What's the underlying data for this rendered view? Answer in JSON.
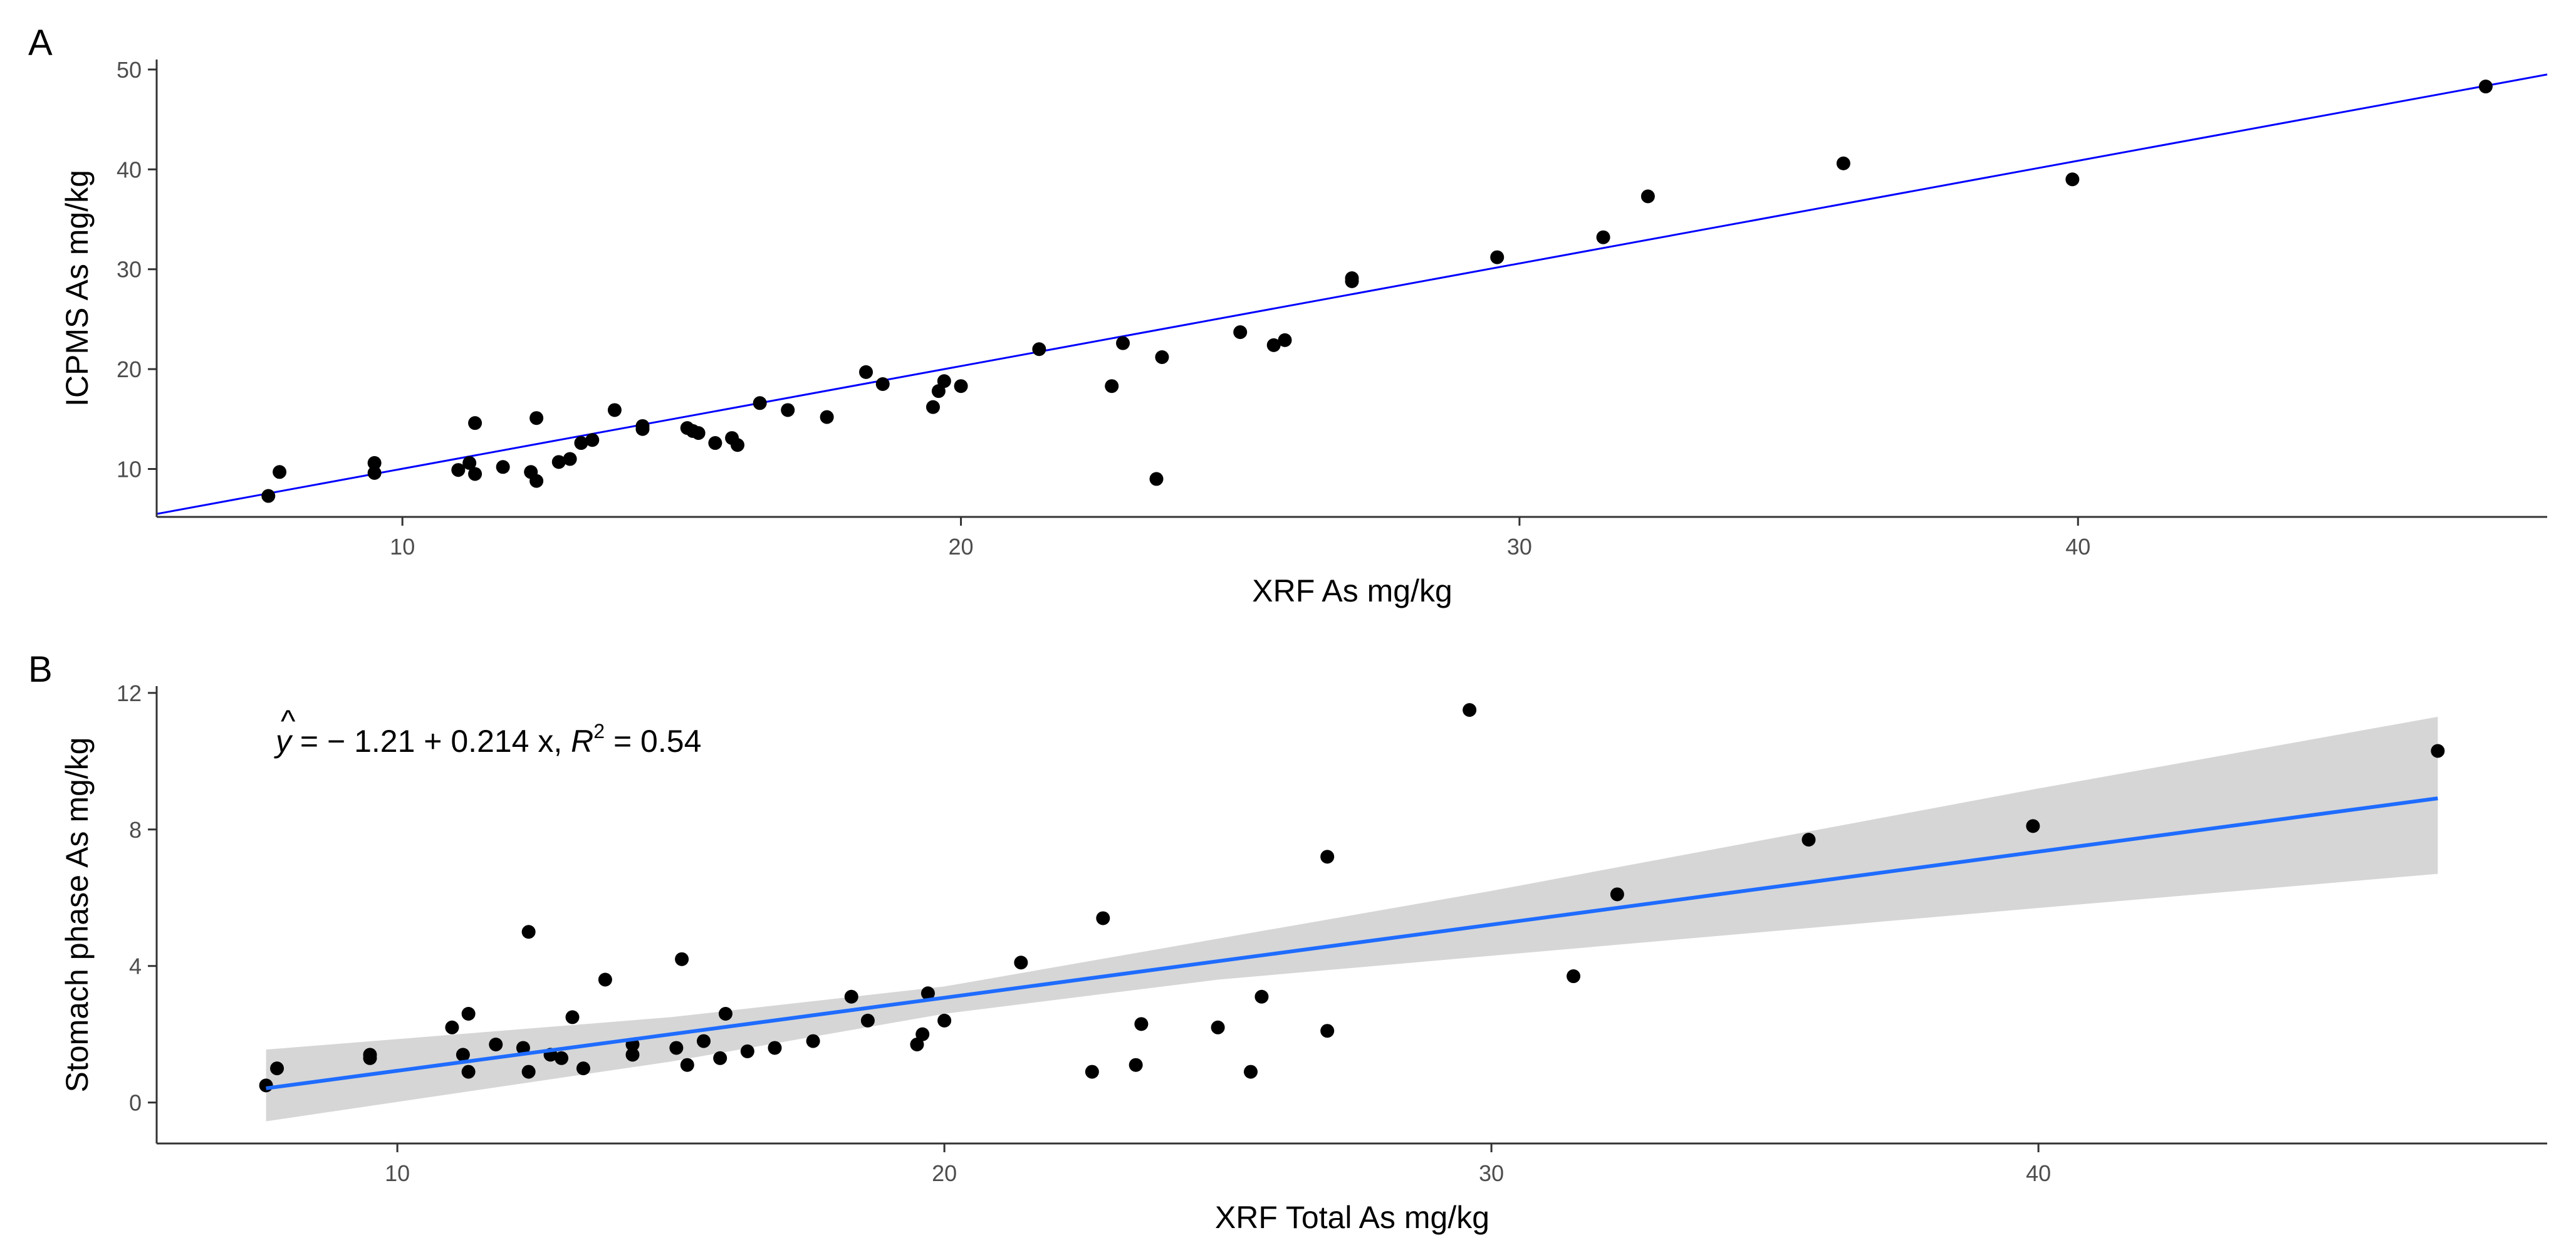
{
  "chart_data": [
    {
      "type": "scatter",
      "panel_tag": "A",
      "xlabel": "XRF As mg/kg",
      "ylabel": "ICPMS As mg/kg",
      "xlim": [
        5.6,
        48.4
      ],
      "ylim": [
        5.2,
        51
      ],
      "xticks": [
        10,
        20,
        30,
        40
      ],
      "yticks": [
        10,
        20,
        30,
        40,
        50
      ],
      "point_color": "#000000",
      "line_color": "#0000ff",
      "fit_line": {
        "x1": 5.6,
        "y1": 5.5,
        "x2": 48.4,
        "y2": 49.5
      },
      "points": [
        [
          7.6,
          7.3
        ],
        [
          7.8,
          9.7
        ],
        [
          9.5,
          10.6
        ],
        [
          9.5,
          9.6
        ],
        [
          11.0,
          9.9
        ],
        [
          11.2,
          10.6
        ],
        [
          11.3,
          14.6
        ],
        [
          11.3,
          9.5
        ],
        [
          11.8,
          10.2
        ],
        [
          12.3,
          9.7
        ],
        [
          12.4,
          8.8
        ],
        [
          12.4,
          15.1
        ],
        [
          12.8,
          10.7
        ],
        [
          13.0,
          11.0
        ],
        [
          13.2,
          12.6
        ],
        [
          13.4,
          12.9
        ],
        [
          13.8,
          15.9
        ],
        [
          14.3,
          14.3
        ],
        [
          14.3,
          14.0
        ],
        [
          15.1,
          14.1
        ],
        [
          15.2,
          13.8
        ],
        [
          15.3,
          13.6
        ],
        [
          15.6,
          12.6
        ],
        [
          15.9,
          13.1
        ],
        [
          16.0,
          12.4
        ],
        [
          16.4,
          16.6
        ],
        [
          16.9,
          15.9
        ],
        [
          17.6,
          15.2
        ],
        [
          18.3,
          19.7
        ],
        [
          18.6,
          18.5
        ],
        [
          19.5,
          16.2
        ],
        [
          19.6,
          17.8
        ],
        [
          19.7,
          18.8
        ],
        [
          20.0,
          18.3
        ],
        [
          21.4,
          22.0
        ],
        [
          22.7,
          18.3
        ],
        [
          22.9,
          22.6
        ],
        [
          23.5,
          9.0
        ],
        [
          23.6,
          21.2
        ],
        [
          25.0,
          23.7
        ],
        [
          25.6,
          22.4
        ],
        [
          25.8,
          22.9
        ],
        [
          27.0,
          28.8
        ],
        [
          27.0,
          29.1
        ],
        [
          29.6,
          31.2
        ],
        [
          31.5,
          33.2
        ],
        [
          32.3,
          37.3
        ],
        [
          35.8,
          40.6
        ],
        [
          39.9,
          39.0
        ],
        [
          47.3,
          48.3
        ]
      ]
    },
    {
      "type": "scatter",
      "panel_tag": "B",
      "xlabel": "XRF Total As mg/kg",
      "ylabel": "Stomach phase As mg/kg",
      "xlim": [
        5.6,
        49.3
      ],
      "ylim": [
        -1.2,
        12.2
      ],
      "xticks": [
        10,
        20,
        30,
        40
      ],
      "yticks": [
        0,
        4,
        8,
        12
      ],
      "point_color": "#000000",
      "line_color": "#1f6cff",
      "band_color": "#d6d6d6",
      "annotation": {
        "yhat": "y",
        "hat": "^",
        "body": " = − 1.21 + 0.214 x, ",
        "r2_label": "R",
        "r2_exp": "2",
        "r2_value": " = 0.54"
      },
      "regression": {
        "intercept": -1.21,
        "slope": 0.214,
        "r2": 0.54
      },
      "band": [
        [
          7.6,
          -0.55,
          1.55
        ],
        [
          15,
          1.2,
          2.5
        ],
        [
          20,
          2.6,
          3.4
        ],
        [
          25,
          3.6,
          4.8
        ],
        [
          30,
          4.3,
          6.2
        ],
        [
          35,
          5.0,
          7.7
        ],
        [
          40,
          5.7,
          9.2
        ],
        [
          47.3,
          6.7,
          11.3
        ]
      ],
      "points": [
        [
          7.6,
          0.5
        ],
        [
          7.8,
          1.0
        ],
        [
          9.5,
          1.3
        ],
        [
          9.5,
          1.4
        ],
        [
          11.0,
          2.2
        ],
        [
          11.2,
          1.4
        ],
        [
          11.3,
          2.6
        ],
        [
          11.3,
          0.9
        ],
        [
          11.8,
          1.7
        ],
        [
          12.3,
          1.6
        ],
        [
          12.4,
          0.9
        ],
        [
          12.4,
          5.0
        ],
        [
          12.8,
          1.4
        ],
        [
          13.0,
          1.3
        ],
        [
          13.2,
          2.5
        ],
        [
          13.4,
          1.0
        ],
        [
          13.8,
          3.6
        ],
        [
          14.3,
          1.7
        ],
        [
          14.3,
          1.4
        ],
        [
          15.1,
          1.6
        ],
        [
          15.2,
          4.2
        ],
        [
          15.3,
          1.1
        ],
        [
          15.6,
          1.8
        ],
        [
          15.9,
          1.3
        ],
        [
          16.0,
          2.6
        ],
        [
          16.4,
          1.5
        ],
        [
          16.9,
          1.6
        ],
        [
          17.6,
          1.8
        ],
        [
          18.3,
          3.1
        ],
        [
          18.6,
          2.4
        ],
        [
          19.5,
          1.7
        ],
        [
          19.6,
          2.0
        ],
        [
          19.7,
          3.2
        ],
        [
          20.0,
          2.4
        ],
        [
          21.4,
          4.1
        ],
        [
          22.7,
          0.9
        ],
        [
          22.9,
          5.4
        ],
        [
          23.5,
          1.1
        ],
        [
          23.6,
          2.3
        ],
        [
          25.0,
          2.2
        ],
        [
          25.6,
          0.9
        ],
        [
          25.8,
          3.1
        ],
        [
          27.0,
          7.2
        ],
        [
          27.0,
          2.1
        ],
        [
          29.6,
          11.5
        ],
        [
          31.5,
          3.7
        ],
        [
          32.3,
          6.1
        ],
        [
          35.8,
          7.7
        ],
        [
          39.9,
          8.1
        ],
        [
          47.3,
          10.3
        ]
      ]
    }
  ]
}
